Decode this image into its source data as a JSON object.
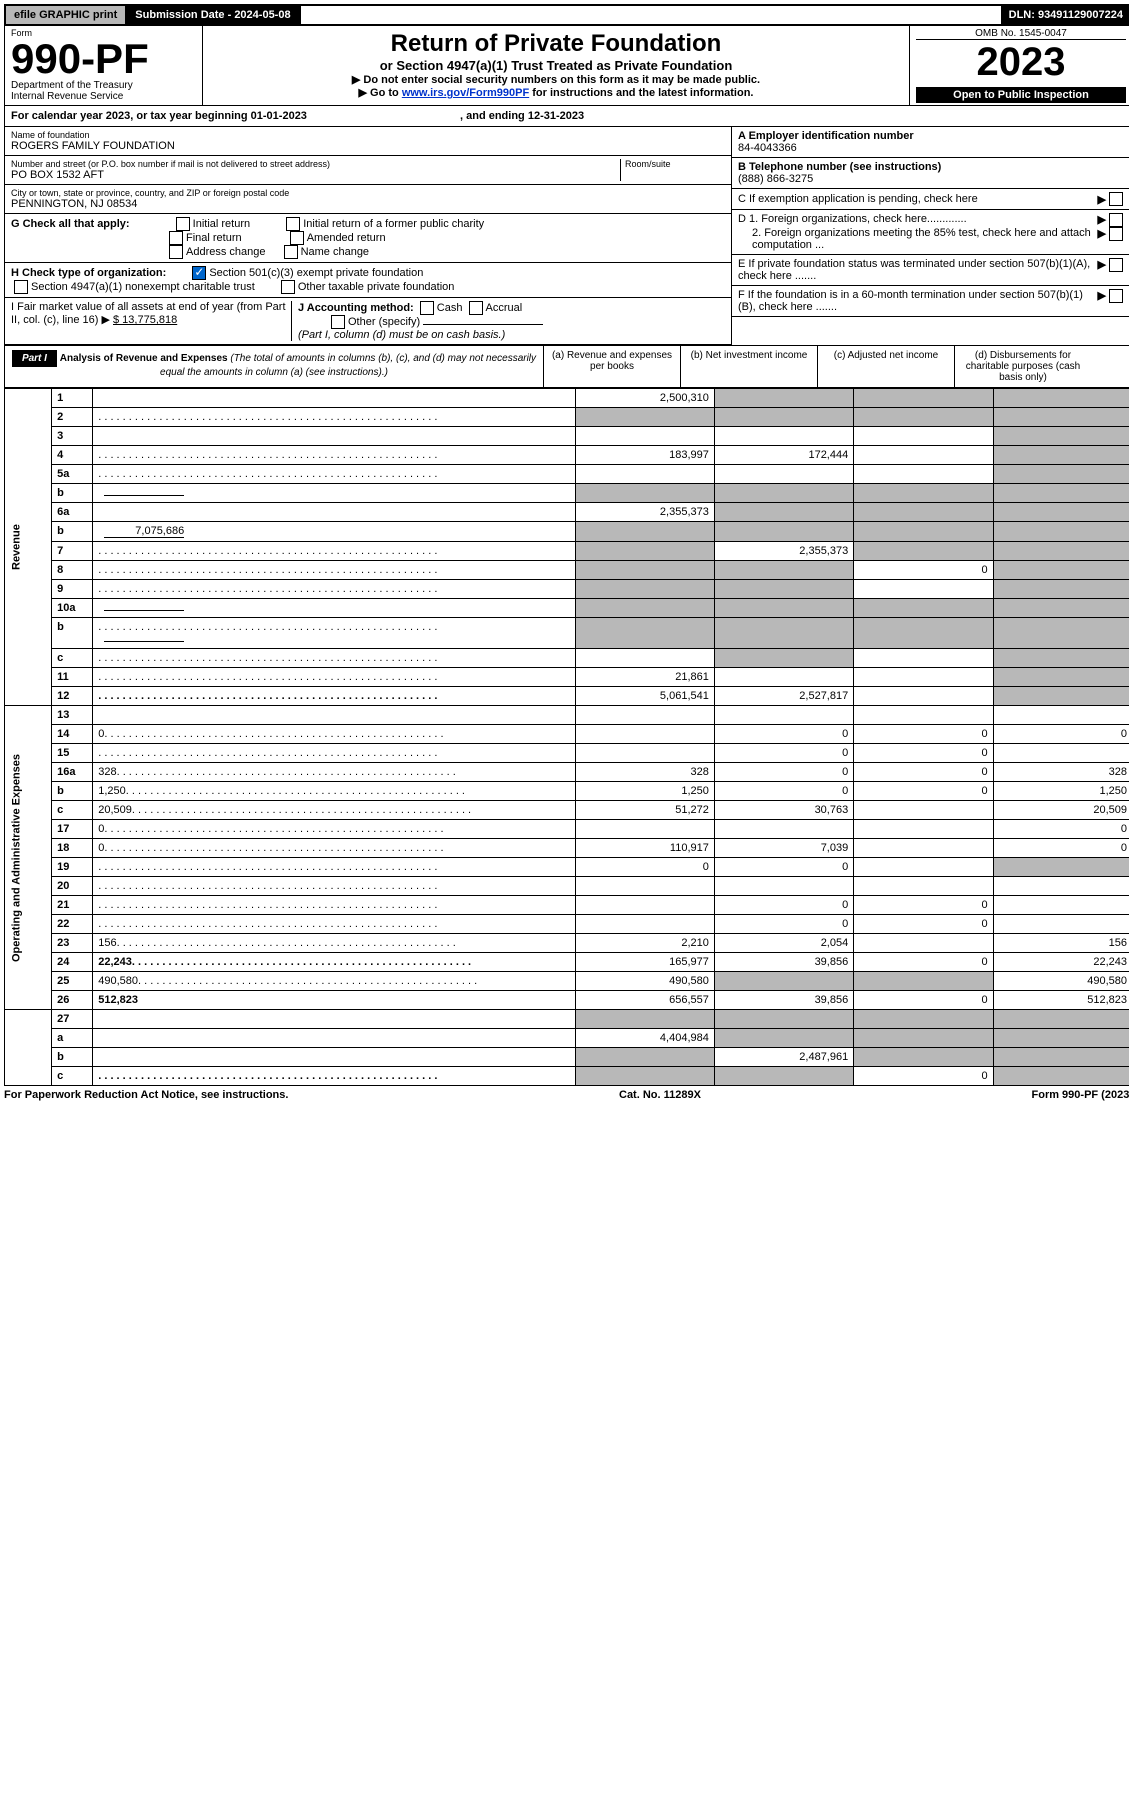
{
  "topbar": {
    "efile": "efile GRAPHIC print",
    "sub_label": "Submission Date - 2024-05-08",
    "dln": "DLN: 93491129007224"
  },
  "header": {
    "form_word": "Form",
    "form_no": "990-PF",
    "dept": "Department of the Treasury",
    "irs": "Internal Revenue Service",
    "title": "Return of Private Foundation",
    "subtitle": "or Section 4947(a)(1) Trust Treated as Private Foundation",
    "instr1": "▶ Do not enter social security numbers on this form as it may be made public.",
    "instr2_pre": "▶ Go to ",
    "instr2_link": "www.irs.gov/Form990PF",
    "instr2_post": " for instructions and the latest information.",
    "omb": "OMB No. 1545-0047",
    "year": "2023",
    "open": "Open to Public Inspection"
  },
  "taxyear": {
    "text_pre": "For calendar year 2023, or tax year beginning ",
    "begin": "01-01-2023",
    "mid": " , and ending ",
    "end": "12-31-2023"
  },
  "entity": {
    "name_label": "Name of foundation",
    "name": "ROGERS FAMILY FOUNDATION",
    "addr_label": "Number and street (or P.O. box number if mail is not delivered to street address)",
    "addr": "PO BOX 1532 AFT",
    "room_label": "Room/suite",
    "city_label": "City or town, state or province, country, and ZIP or foreign postal code",
    "city": "PENNINGTON, NJ  08534",
    "ein_label": "A Employer identification number",
    "ein": "84-4043366",
    "tel_label": "B Telephone number (see instructions)",
    "tel": "(888) 866-3275",
    "c_label": "C If exemption application is pending, check here",
    "d1": "D 1. Foreign organizations, check here.............",
    "d2": "2. Foreign organizations meeting the 85% test, check here and attach computation ...",
    "e": "E If private foundation status was terminated under section 507(b)(1)(A), check here .......",
    "f": "F If the foundation is in a 60-month termination under section 507(b)(1)(B), check here .......",
    "g_label": "G Check all that apply:",
    "g_initial": "Initial return",
    "g_initial_former": "Initial return of a former public charity",
    "g_final": "Final return",
    "g_amended": "Amended return",
    "g_address": "Address change",
    "g_name": "Name change",
    "h_label": "H Check type of organization:",
    "h_501c3": "Section 501(c)(3) exempt private foundation",
    "h_4947": "Section 4947(a)(1) nonexempt charitable trust",
    "h_other": "Other taxable private foundation",
    "i_label": "I Fair market value of all assets at end of year (from Part II, col. (c), line 16) ▶",
    "i_value": "$  13,775,818",
    "j_label": "J Accounting method:",
    "j_cash": "Cash",
    "j_accrual": "Accrual",
    "j_other": "Other (specify)",
    "j_note": "(Part I, column (d) must be on cash basis.)"
  },
  "part1": {
    "label": "Part I",
    "title": "Analysis of Revenue and Expenses",
    "title_note": "(The total of amounts in columns (b), (c), and (d) may not necessarily equal the amounts in column (a) (see instructions).)",
    "col_a": "(a) Revenue and expenses per books",
    "col_b": "(b) Net investment income",
    "col_c": "(c) Adjusted net income",
    "col_d": "(d) Disbursements for charitable purposes (cash basis only)"
  },
  "side_labels": {
    "revenue": "Revenue",
    "opex": "Operating and Administrative Expenses"
  },
  "rows": [
    {
      "n": "1",
      "d": "",
      "a": "2,500,310",
      "b": "",
      "c": "",
      "shade_b": true,
      "shade_c": true,
      "shade_d": true,
      "dots": false
    },
    {
      "n": "2",
      "d": "",
      "a": "",
      "b": "",
      "c": "",
      "shade_a": true,
      "shade_b": true,
      "shade_c": true,
      "shade_d": true,
      "dots": true
    },
    {
      "n": "3",
      "d": "",
      "a": "",
      "b": "",
      "c": "",
      "shade_d": true,
      "dots": false
    },
    {
      "n": "4",
      "d": "",
      "a": "183,997",
      "b": "172,444",
      "c": "",
      "shade_d": true,
      "dots": true
    },
    {
      "n": "5a",
      "d": "",
      "a": "",
      "b": "",
      "c": "",
      "shade_d": true,
      "dots": true
    },
    {
      "n": "b",
      "d": "",
      "a": "",
      "b": "",
      "c": "",
      "shade_a": true,
      "shade_b": true,
      "shade_c": true,
      "shade_d": true,
      "dots": false,
      "inline_box": true
    },
    {
      "n": "6a",
      "d": "",
      "a": "2,355,373",
      "b": "",
      "c": "",
      "shade_b": true,
      "shade_c": true,
      "shade_d": true,
      "dots": false
    },
    {
      "n": "b",
      "d": "",
      "a": "",
      "b": "",
      "c": "",
      "shade_a": true,
      "shade_b": true,
      "shade_c": true,
      "shade_d": true,
      "dots": false,
      "inline_box": true,
      "inline_val": "7,075,686"
    },
    {
      "n": "7",
      "d": "",
      "a": "",
      "b": "2,355,373",
      "c": "",
      "shade_a": true,
      "shade_c": true,
      "shade_d": true,
      "dots": true
    },
    {
      "n": "8",
      "d": "",
      "a": "",
      "b": "",
      "c": "0",
      "shade_a": true,
      "shade_b": true,
      "shade_d": true,
      "dots": true
    },
    {
      "n": "9",
      "d": "",
      "a": "",
      "b": "",
      "c": "",
      "shade_a": true,
      "shade_b": true,
      "shade_d": true,
      "dots": true
    },
    {
      "n": "10a",
      "d": "",
      "a": "",
      "b": "",
      "c": "",
      "shade_a": true,
      "shade_b": true,
      "shade_c": true,
      "shade_d": true,
      "dots": false,
      "inline_box": true
    },
    {
      "n": "b",
      "d": "",
      "a": "",
      "b": "",
      "c": "",
      "shade_a": true,
      "shade_b": true,
      "shade_c": true,
      "shade_d": true,
      "dots": true,
      "inline_box": true
    },
    {
      "n": "c",
      "d": "",
      "a": "",
      "b": "",
      "c": "",
      "shade_b": true,
      "shade_d": true,
      "dots": true
    },
    {
      "n": "11",
      "d": "",
      "a": "21,861",
      "b": "",
      "c": "",
      "shade_d": true,
      "dots": true
    },
    {
      "n": "12",
      "d": "",
      "a": "5,061,541",
      "b": "2,527,817",
      "c": "",
      "shade_d": true,
      "dots": true,
      "bold": true
    },
    {
      "n": "13",
      "d": "",
      "a": "",
      "b": "",
      "c": "",
      "dots": false
    },
    {
      "n": "14",
      "d": "0",
      "a": "",
      "b": "0",
      "c": "0",
      "dots": true
    },
    {
      "n": "15",
      "d": "",
      "a": "",
      "b": "0",
      "c": "0",
      "dots": true
    },
    {
      "n": "16a",
      "d": "328",
      "a": "328",
      "b": "0",
      "c": "0",
      "dots": true
    },
    {
      "n": "b",
      "d": "1,250",
      "a": "1,250",
      "b": "0",
      "c": "0",
      "dots": true
    },
    {
      "n": "c",
      "d": "20,509",
      "a": "51,272",
      "b": "30,763",
      "c": "",
      "dots": true
    },
    {
      "n": "17",
      "d": "0",
      "a": "",
      "b": "",
      "c": "",
      "dots": true
    },
    {
      "n": "18",
      "d": "0",
      "a": "110,917",
      "b": "7,039",
      "c": "",
      "dots": true
    },
    {
      "n": "19",
      "d": "",
      "a": "0",
      "b": "0",
      "c": "",
      "shade_d": true,
      "dots": true
    },
    {
      "n": "20",
      "d": "",
      "a": "",
      "b": "",
      "c": "",
      "dots": true
    },
    {
      "n": "21",
      "d": "",
      "a": "",
      "b": "0",
      "c": "0",
      "dots": true
    },
    {
      "n": "22",
      "d": "",
      "a": "",
      "b": "0",
      "c": "0",
      "dots": true
    },
    {
      "n": "23",
      "d": "156",
      "a": "2,210",
      "b": "2,054",
      "c": "",
      "dots": true
    },
    {
      "n": "24",
      "d": "22,243",
      "a": "165,977",
      "b": "39,856",
      "c": "0",
      "dots": true,
      "bold": true
    },
    {
      "n": "25",
      "d": "490,580",
      "a": "490,580",
      "b": "",
      "c": "",
      "shade_b": true,
      "shade_c": true,
      "dots": true
    },
    {
      "n": "26",
      "d": "512,823",
      "a": "656,557",
      "b": "39,856",
      "c": "0",
      "dots": false,
      "bold": true
    },
    {
      "n": "27",
      "d": "",
      "a": "",
      "b": "",
      "c": "",
      "shade_a": true,
      "shade_b": true,
      "shade_c": true,
      "shade_d": true,
      "dots": false
    },
    {
      "n": "a",
      "d": "",
      "a": "4,404,984",
      "b": "",
      "c": "",
      "shade_b": true,
      "shade_c": true,
      "shade_d": true,
      "dots": false,
      "bold": true
    },
    {
      "n": "b",
      "d": "",
      "a": "",
      "b": "2,487,961",
      "c": "",
      "shade_a": true,
      "shade_c": true,
      "shade_d": true,
      "dots": false,
      "bold": true
    },
    {
      "n": "c",
      "d": "",
      "a": "",
      "b": "",
      "c": "0",
      "shade_a": true,
      "shade_b": true,
      "shade_d": true,
      "dots": true,
      "bold": true
    }
  ],
  "footer": {
    "left": "For Paperwork Reduction Act Notice, see instructions.",
    "mid": "Cat. No. 11289X",
    "right": "Form 990-PF (2023)"
  }
}
